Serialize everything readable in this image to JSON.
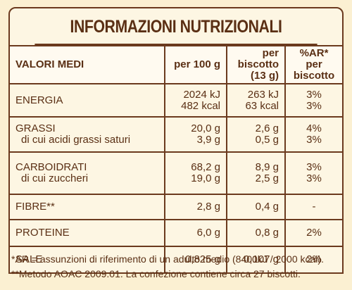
{
  "title": "INFORMAZIONI NUTRIZIONALI",
  "table": {
    "header": [
      [
        "VALORI MEDI"
      ],
      [
        "per 100 g"
      ],
      [
        "per biscotto",
        "(13 g)"
      ],
      [
        "%AR*",
        "per biscotto"
      ]
    ],
    "rows": [
      [
        [
          "ENERGIA"
        ],
        [
          "2024 kJ",
          "482 kcal"
        ],
        [
          "263 kJ",
          "63 kcal"
        ],
        [
          "3%",
          "3%"
        ]
      ],
      [
        [
          "GRASSI",
          "di cui acidi grassi saturi"
        ],
        [
          "20,0 g",
          "3,9 g"
        ],
        [
          "2,6 g",
          "0,5 g"
        ],
        [
          "4%",
          "3%"
        ]
      ],
      [
        [
          "CARBOIDRATI",
          "di cui zuccheri"
        ],
        [
          "68,2 g",
          "19,0 g"
        ],
        [
          "8,9 g",
          "2,5 g"
        ],
        [
          "3%",
          "3%"
        ]
      ],
      [
        [
          "FIBRE**"
        ],
        [
          "2,8 g"
        ],
        [
          "0,4 g"
        ],
        [
          "-"
        ]
      ],
      [
        [
          "PROTEINE"
        ],
        [
          "6,0 g"
        ],
        [
          "0,8 g"
        ],
        [
          "2%"
        ]
      ],
      [
        [
          "SALE"
        ],
        [
          "0,825 g"
        ],
        [
          "0,107 g"
        ],
        [
          "2%"
        ]
      ]
    ]
  },
  "footnotes": [
    "*AR = assunzioni di riferimento di un adulto medio (8400kJ / 2000 kcal).",
    "**Metodo AOAC 2009.01. La confezione contiene circa 27 biscotti."
  ]
}
